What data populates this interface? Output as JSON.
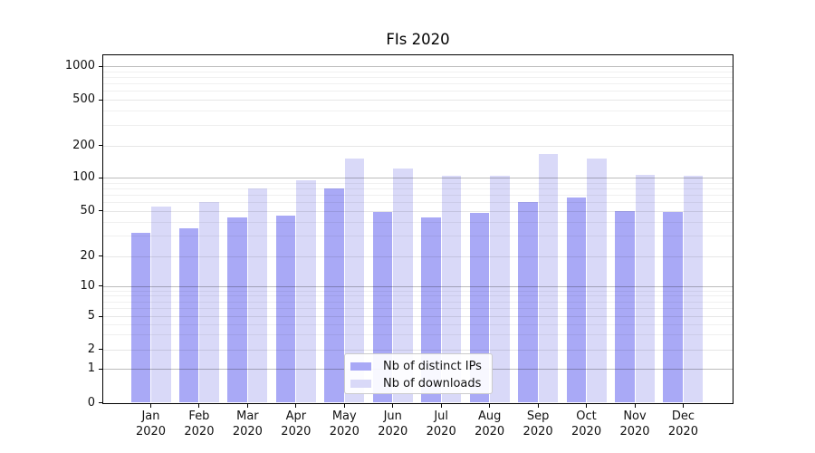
{
  "title": "FIs 2020",
  "chart_data": {
    "type": "bar",
    "title": "FIs 2020",
    "categories": [
      "Jan 2020",
      "Feb 2020",
      "Mar 2020",
      "Apr 2020",
      "May 2020",
      "Jun 2020",
      "Jul 2020",
      "Aug 2020",
      "Sep 2020",
      "Oct 2020",
      "Nov 2020",
      "Dec 2020"
    ],
    "series": [
      {
        "name": "Nb of distinct IPs",
        "color": "#a9a9f6",
        "values": [
          32,
          35,
          44,
          45,
          80,
          49,
          44,
          48,
          60,
          66,
          50,
          49
        ]
      },
      {
        "name": "Nb of downloads",
        "color": "#d9d9f8",
        "values": [
          55,
          60,
          80,
          95,
          152,
          122,
          103,
          103,
          168,
          152,
          106,
          104
        ]
      }
    ],
    "yscale": "symlog",
    "yticks": [
      0,
      1,
      2,
      5,
      10,
      20,
      50,
      100,
      200,
      500,
      1000
    ],
    "ylim": [
      0,
      1270
    ],
    "xlabel": "",
    "ylabel": "",
    "grid": true,
    "legend_position": "lower center inside"
  },
  "colors": {
    "grid_major": "#bcbcbc",
    "grid_tick": "#e6e6e6",
    "grid_minor": "#f0f0f0",
    "axis": "#000000",
    "text": "#111111"
  }
}
